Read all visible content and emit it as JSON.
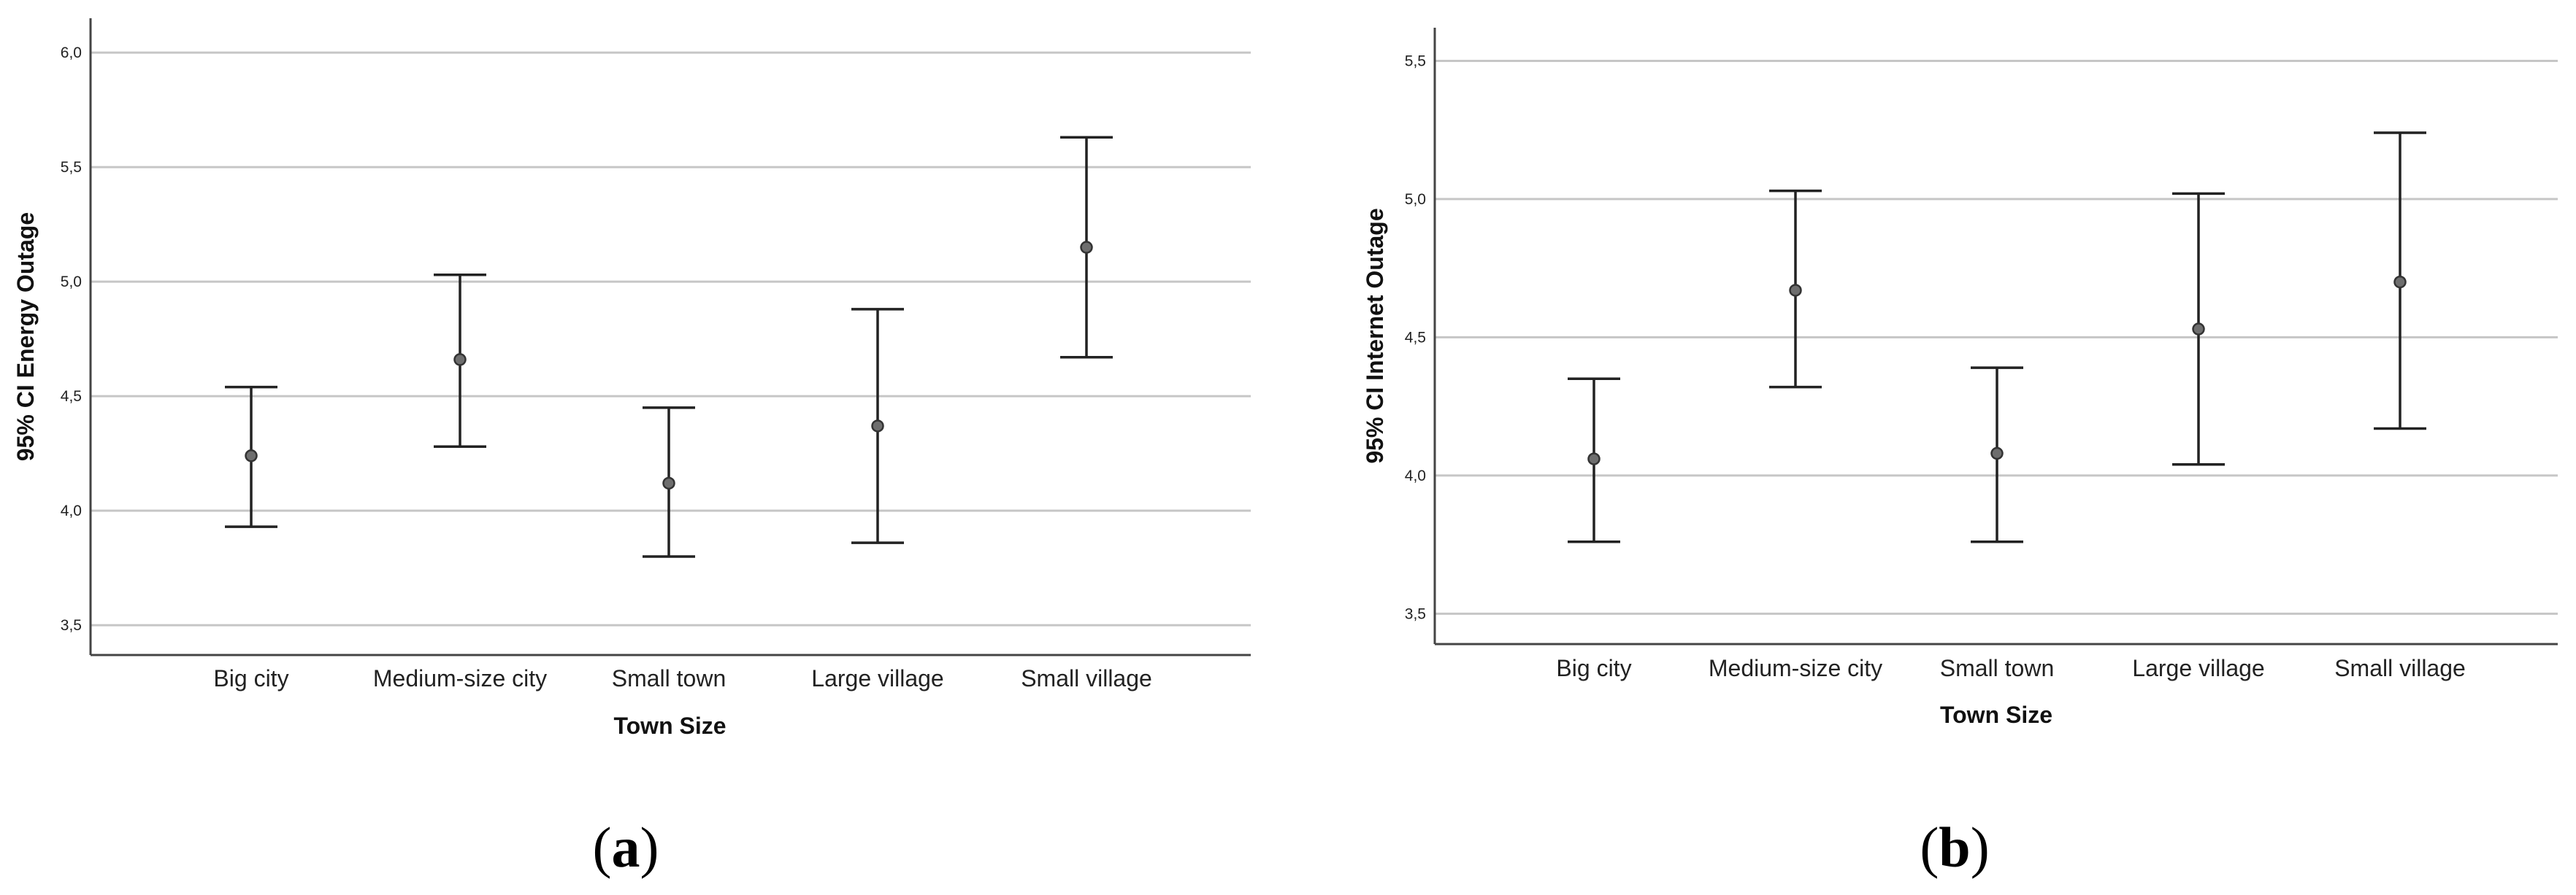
{
  "colors": {
    "grid": "#c6c6c6",
    "axis": "#444444",
    "errorbar": "#222222",
    "marker_fill": "#6e6e6e",
    "marker_stroke": "#333333"
  },
  "chart_data": [
    {
      "type": "errorbar",
      "panel": "a",
      "panel_label": "a",
      "xlabel": "Town Size",
      "ylabel": "95% CI Energy Outage",
      "categories": [
        "Big city",
        "Medium-size city",
        "Small town",
        "Large village",
        "Small village"
      ],
      "means": [
        4.24,
        4.66,
        4.12,
        4.37,
        5.15
      ],
      "lower": [
        3.93,
        4.28,
        3.8,
        3.86,
        4.67
      ],
      "upper": [
        4.54,
        5.03,
        4.45,
        4.88,
        5.63
      ],
      "ylim": [
        3.37,
        6.15
      ],
      "yticks": [
        3.5,
        4.0,
        4.5,
        5.0,
        5.5,
        6.0
      ],
      "ytick_labels": [
        "3,5",
        "4,0",
        "4,5",
        "5,0",
        "5,5",
        "6,0"
      ],
      "grid": true
    },
    {
      "type": "errorbar",
      "panel": "b",
      "panel_label": "b",
      "xlabel": "Town Size",
      "ylabel": "95% CI Internet Outage",
      "categories": [
        "Big city",
        "Medium-size city",
        "Small town",
        "Large village",
        "Small village"
      ],
      "means": [
        4.06,
        4.67,
        4.08,
        4.53,
        4.7
      ],
      "lower": [
        3.76,
        4.32,
        3.76,
        4.04,
        4.17
      ],
      "upper": [
        4.35,
        5.03,
        4.39,
        5.02,
        5.24
      ],
      "ylim": [
        3.39,
        5.62
      ],
      "yticks": [
        3.5,
        4.0,
        4.5,
        5.0,
        5.5
      ],
      "ytick_labels": [
        "3,5",
        "4,0",
        "4,5",
        "5,0",
        "5,5"
      ],
      "grid": true
    }
  ]
}
